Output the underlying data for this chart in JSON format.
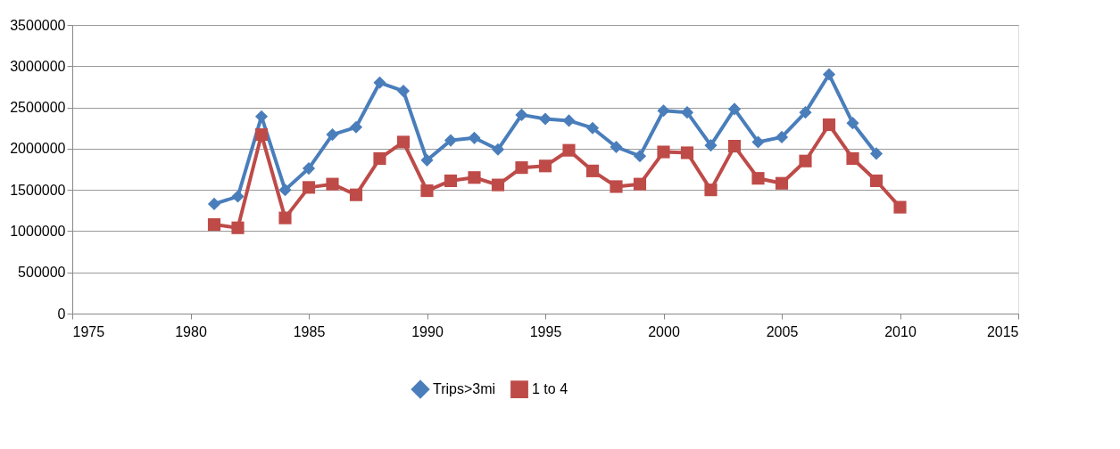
{
  "chart_data": {
    "type": "line",
    "series": [
      {
        "name": "Trips>3mi",
        "color": "#4a7ebb",
        "marker": "diamond",
        "x": [
          1981,
          1982,
          1983,
          1984,
          1985,
          1986,
          1987,
          1988,
          1989,
          1990,
          1991,
          1992,
          1993,
          1994,
          1995,
          1996,
          1997,
          1998,
          1999,
          2000,
          2001,
          2002,
          2003,
          2004,
          2005,
          2006,
          2007,
          2008,
          2009
        ],
        "values": [
          1330000,
          1420000,
          2390000,
          1500000,
          1760000,
          2170000,
          2260000,
          2800000,
          2700000,
          1860000,
          2100000,
          2130000,
          1990000,
          2410000,
          2360000,
          2340000,
          2250000,
          2020000,
          1910000,
          2460000,
          2440000,
          2040000,
          2480000,
          2080000,
          2140000,
          2440000,
          2900000,
          2310000,
          1940000
        ]
      },
      {
        "name": "1 to 4",
        "color": "#be4b48",
        "marker": "square",
        "x": [
          1981,
          1982,
          1983,
          1984,
          1985,
          1986,
          1987,
          1988,
          1989,
          1990,
          1991,
          1992,
          1993,
          1994,
          1995,
          1996,
          1997,
          1998,
          1999,
          2000,
          2001,
          2002,
          2003,
          2004,
          2005,
          2006,
          2007,
          2008,
          2009,
          2010
        ],
        "values": [
          1080000,
          1040000,
          2170000,
          1160000,
          1530000,
          1570000,
          1440000,
          1880000,
          2080000,
          1490000,
          1610000,
          1650000,
          1560000,
          1770000,
          1790000,
          1980000,
          1730000,
          1540000,
          1570000,
          1960000,
          1950000,
          1500000,
          2030000,
          1640000,
          1580000,
          1850000,
          2290000,
          1880000,
          1610000,
          1290000
        ]
      }
    ],
    "xlim": [
      1975,
      2015
    ],
    "xticks": [
      1975,
      1980,
      1985,
      1990,
      1995,
      2000,
      2005,
      2010,
      2015
    ],
    "ylim": [
      0,
      3500000
    ],
    "yticks": [
      0,
      500000,
      1000000,
      1500000,
      2000000,
      2500000,
      3000000,
      3500000
    ],
    "grid": "y",
    "legend": "bottom",
    "line_style": "solid"
  }
}
